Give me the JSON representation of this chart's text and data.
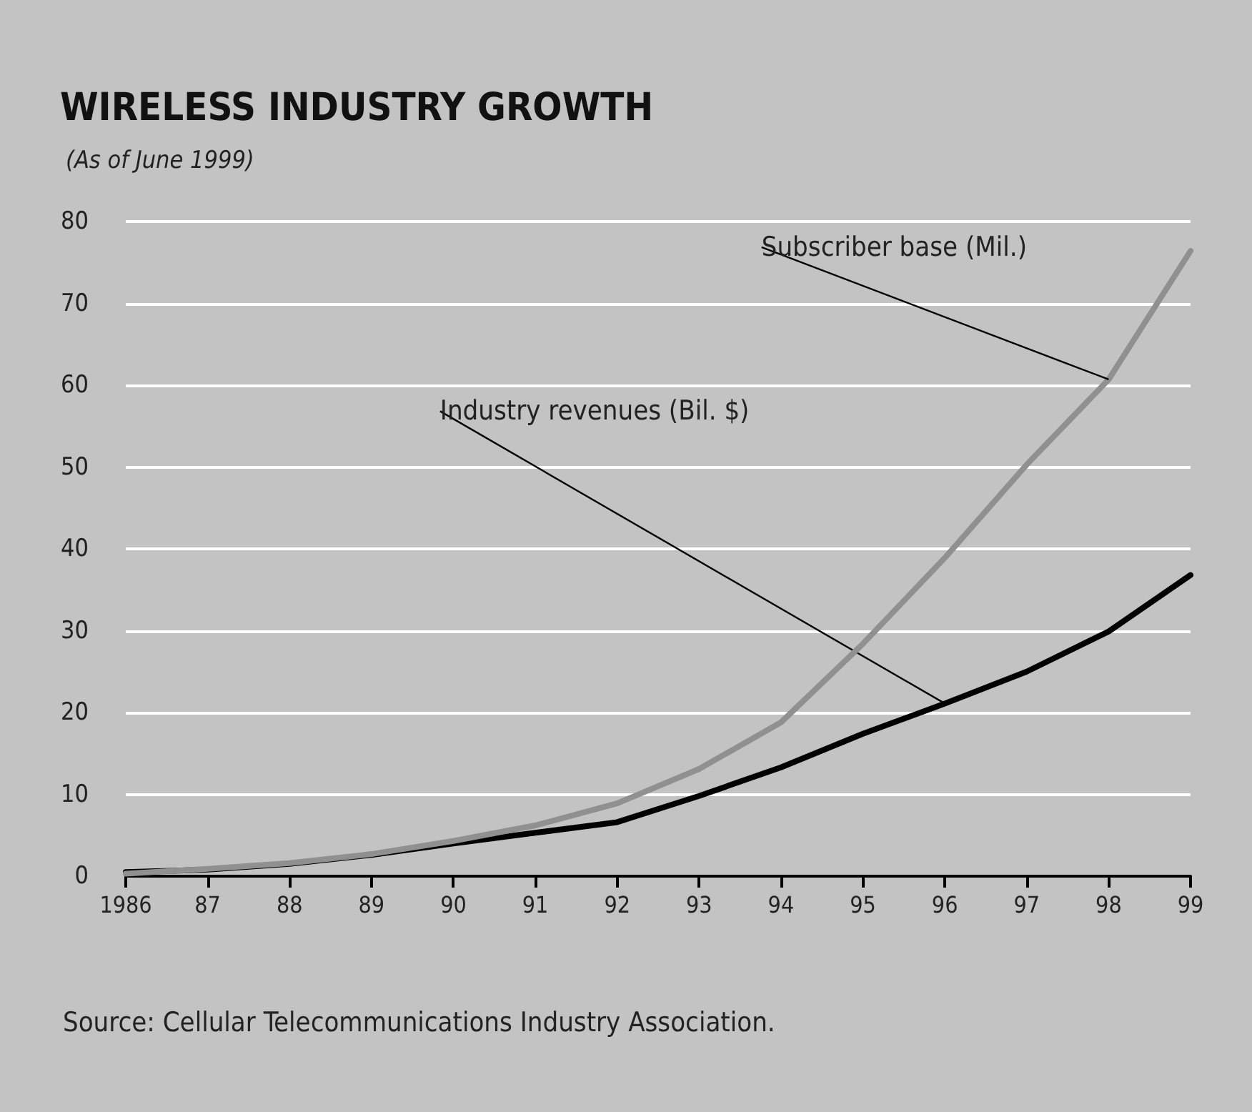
{
  "chart_data": {
    "type": "line",
    "title": "WIRELESS INDUSTRY GROWTH",
    "subtitle": "(As of June 1999)",
    "categories": [
      "1986",
      "87",
      "88",
      "89",
      "90",
      "91",
      "92",
      "93",
      "94",
      "95",
      "96",
      "97",
      "98",
      "99"
    ],
    "series": [
      {
        "name": "Subscriber base (Mil.)",
        "color": "#909090",
        "values": [
          0.3,
          0.9,
          1.6,
          2.7,
          4.3,
          6.2,
          8.9,
          13.1,
          18.8,
          28.4,
          38.9,
          50.3,
          60.7,
          76.4
        ]
      },
      {
        "name": "Industry revenues (Bil. $)",
        "color": "#000000",
        "values": [
          0.5,
          0.8,
          1.5,
          2.6,
          4.0,
          5.3,
          6.6,
          9.8,
          13.3,
          17.4,
          21.1,
          25.0,
          29.9,
          36.8
        ]
      }
    ],
    "ylim": [
      0,
      80
    ],
    "yticks": [
      0,
      10,
      20,
      30,
      40,
      50,
      60,
      70,
      80
    ],
    "grid": "y",
    "legend": false,
    "marker": "none",
    "line_style": "solid",
    "annotations": [
      "Source: Cellular Telecommunications Industry Association."
    ]
  }
}
